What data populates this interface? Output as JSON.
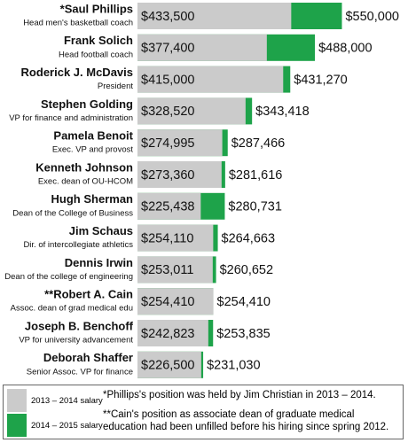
{
  "chart_data": {
    "type": "bar",
    "orientation": "horizontal",
    "categories": [
      "*Saul Phillips",
      "Frank Solich",
      "Roderick J. McDavis",
      "Stephen Golding",
      "Pamela Benoit",
      "Kenneth Johnson",
      "Hugh Sherman",
      "Jim Schaus",
      "Dennis Irwin",
      "**Robert A. Cain",
      "Joseph B. Benchoff",
      "Deborah Shaffer"
    ],
    "subtitles": [
      "Head men's basketball coach",
      "Head football coach",
      "President",
      "VP for finance and administration",
      "Exec. VP and provost",
      "Exec. dean of OU-HCOM",
      "Dean of the College of Business",
      "Dir. of intercollegiate athletics",
      "Dean of the college of engineering",
      "Assoc. dean of grad medical edu",
      "VP for university advancement",
      "Senior Assoc. VP for finance"
    ],
    "series": [
      {
        "name": "2013 – 2014 salary",
        "color": "#cbcbcb",
        "values": [
          433500,
          377400,
          415000,
          328520,
          274995,
          273360,
          225438,
          254110,
          253011,
          254410,
          242823,
          226500
        ],
        "value_labels": [
          "$433,500",
          "$377,400",
          "$415,000",
          "$328,520",
          "$274,995",
          "$273,360",
          "$225,438",
          "$254,110",
          "$253,011",
          "$254,410",
          "$242,823",
          "$226,500"
        ]
      },
      {
        "name": "2014 – 2015 salary",
        "color": "#1ea34a",
        "values": [
          550000,
          488000,
          431270,
          343418,
          287466,
          281616,
          280731,
          264663,
          260652,
          254410,
          253835,
          231030
        ],
        "value_labels": [
          "$550,000",
          "$488,000",
          "$431,270",
          "$343,418",
          "$287,466",
          "$281,616",
          "$280,731",
          "$264,663",
          "$260,652",
          "$254,410",
          "$253,835",
          "$231,030"
        ]
      }
    ],
    "xlim": [
      80000,
      600000
    ],
    "notes": [
      "*Phillips's position was held by Jim Christian in 2013 – 2014.",
      "**Cain's position as associate dean of graduate medical education had been unfilled before his hiring since spring 2012."
    ]
  }
}
